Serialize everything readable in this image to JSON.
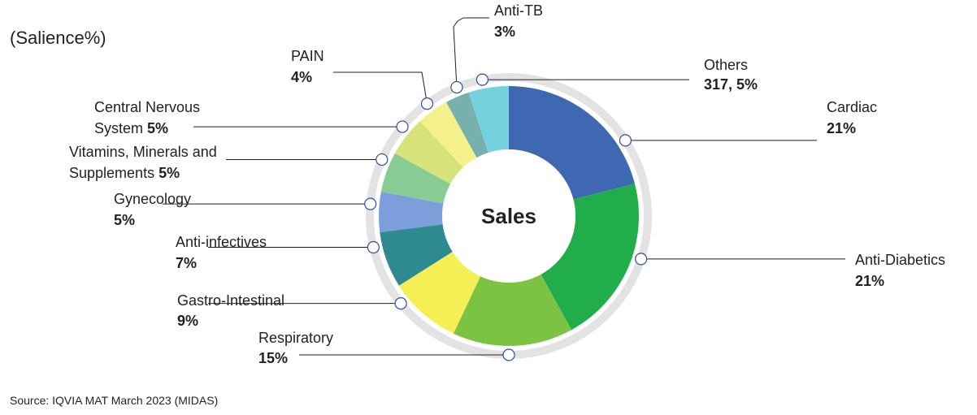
{
  "title": "(Salience%)",
  "source": "Source: IQVIA MAT March 2023 (MIDAS)",
  "center_label": "Sales",
  "chart_data": {
    "type": "pie",
    "donut": true,
    "title": "(Salience%)",
    "center_label": "Sales",
    "slices": [
      {
        "label": "Cardiac",
        "value": 21,
        "value_text": "21%",
        "color": "#3f68b3"
      },
      {
        "label": "Anti-Diabetics",
        "value": 21,
        "value_text": "21%",
        "color": "#22ad4b"
      },
      {
        "label": "Respiratory",
        "value": 15,
        "value_text": "15%",
        "color": "#7cc243"
      },
      {
        "label": "Gastro-Intestinal",
        "value": 9,
        "value_text": "9%",
        "color": "#f5ef55"
      },
      {
        "label": "Anti-infectives",
        "value": 7,
        "value_text": "7%",
        "color": "#2e8a90"
      },
      {
        "label": "Gynecology",
        "value": 5,
        "value_text": "5%",
        "color": "#7c9fdb"
      },
      {
        "label": "Vitamins, Minerals and Supplements",
        "value": 5,
        "value_text": "5%",
        "color": "#88cc94"
      },
      {
        "label": "Central Nervous System",
        "value": 5,
        "value_text": "5%",
        "color": "#d6e27a"
      },
      {
        "label": "PAIN",
        "value": 4,
        "value_text": "4%",
        "color": "#f4f08a"
      },
      {
        "label": "Anti-TB",
        "value": 3,
        "value_text": "3%",
        "color": "#77b1ad"
      },
      {
        "label": "Others",
        "value": 5,
        "value_text": "317, 5%",
        "color": "#76d1df"
      }
    ],
    "label_lines": {
      "Cardiac": [
        "Cardiac"
      ],
      "Anti-Diabetics": [
        "Anti-Diabetics"
      ],
      "Respiratory": [
        "Respiratory"
      ],
      "Gastro-Intestinal": [
        "Gastro-Intestinal"
      ],
      "Anti-infectives": [
        "Anti-infectives"
      ],
      "Gynecology": [
        "Gynecology"
      ],
      "Vitamins, Minerals and Supplements": [
        "Vitamins, Minerals and",
        "Supplements"
      ],
      "Central Nervous System": [
        "Central Nervous",
        "System"
      ],
      "PAIN": [
        "PAIN"
      ],
      "Anti-TB": [
        "Anti-TB"
      ],
      "Others": [
        "Others"
      ]
    },
    "ring_color": "#e3e3e3",
    "connector_color": "#231f20"
  }
}
